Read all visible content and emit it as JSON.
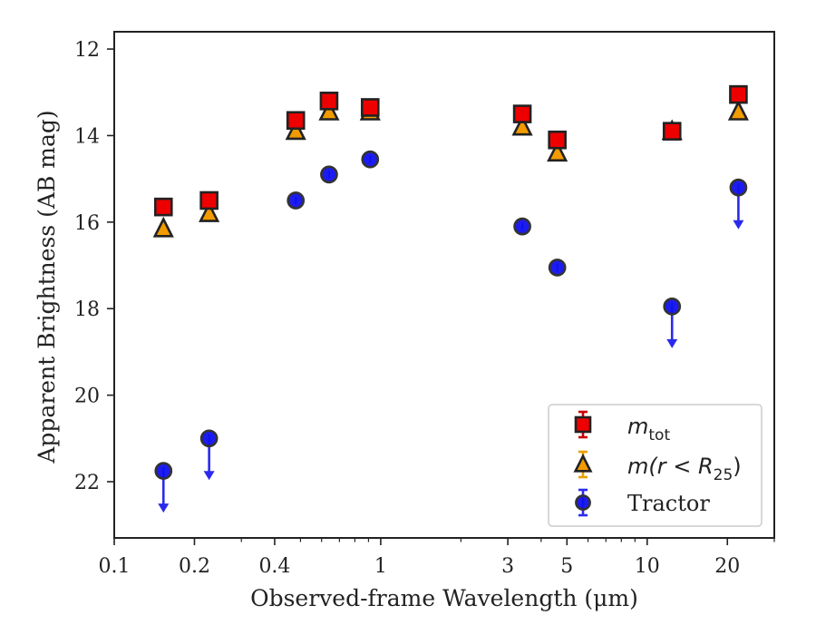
{
  "chart_data": {
    "type": "scatter",
    "xlabel": "Observed-frame Wavelength (μm)",
    "ylabel": "Apparent Brightness (AB mag)",
    "xscale": "log",
    "xlim": [
      0.1,
      30
    ],
    "ylim": [
      23.3,
      11.6
    ],
    "y_inverted": true,
    "xticks": [
      {
        "value": 0.1,
        "label": "0.1"
      },
      {
        "value": 0.2,
        "label": "0.2"
      },
      {
        "value": 0.4,
        "label": "0.4"
      },
      {
        "value": 1,
        "label": "1"
      },
      {
        "value": 3,
        "label": "3"
      },
      {
        "value": 5,
        "label": "5"
      },
      {
        "value": 10,
        "label": "10"
      },
      {
        "value": 20,
        "label": "20"
      }
    ],
    "yticks": [
      {
        "value": 12,
        "label": "12"
      },
      {
        "value": 14,
        "label": "14"
      },
      {
        "value": 16,
        "label": "16"
      },
      {
        "value": 18,
        "label": "18"
      },
      {
        "value": 20,
        "label": "20"
      },
      {
        "value": 22,
        "label": "22"
      }
    ],
    "legend_position": "lower right",
    "legend": [
      {
        "label": "m",
        "sub": "tot"
      },
      {
        "label": "m(r < R",
        "sub": "25",
        "suffix": ")"
      },
      {
        "label": "Tractor"
      }
    ],
    "series": [
      {
        "marker": "square",
        "color": "#ee0000",
        "edge": "#222222",
        "errcolor": "#cc0000",
        "points": [
          {
            "x": 0.153,
            "y": 15.65
          },
          {
            "x": 0.227,
            "y": 15.5
          },
          {
            "x": 0.48,
            "y": 13.65
          },
          {
            "x": 0.64,
            "y": 13.2
          },
          {
            "x": 0.913,
            "y": 13.35
          },
          {
            "x": 3.4,
            "y": 13.5
          },
          {
            "x": 4.6,
            "y": 14.1
          },
          {
            "x": 12.4,
            "y": 13.9
          },
          {
            "x": 22.0,
            "y": 13.05
          }
        ]
      },
      {
        "marker": "triangle",
        "color": "#f29b00",
        "edge": "#222222",
        "errcolor": "#e8a000",
        "points": [
          {
            "x": 0.153,
            "y": 16.15
          },
          {
            "x": 0.227,
            "y": 15.8
          },
          {
            "x": 0.48,
            "y": 13.9
          },
          {
            "x": 0.64,
            "y": 13.45
          },
          {
            "x": 0.913,
            "y": 13.45
          },
          {
            "x": 3.4,
            "y": 13.8
          },
          {
            "x": 4.6,
            "y": 14.4
          },
          {
            "x": 12.4,
            "y": 13.9
          },
          {
            "x": 22.0,
            "y": 13.45
          }
        ]
      },
      {
        "marker": "circle",
        "color": "#1010ee",
        "edge": "#333333",
        "errcolor": "#2a2aee",
        "points": [
          {
            "x": 0.153,
            "y": 21.75,
            "upper_limit": true
          },
          {
            "x": 0.227,
            "y": 21.0,
            "upper_limit": true
          },
          {
            "x": 0.48,
            "y": 15.5
          },
          {
            "x": 0.64,
            "y": 14.9
          },
          {
            "x": 0.913,
            "y": 14.55
          },
          {
            "x": 3.4,
            "y": 16.1
          },
          {
            "x": 4.6,
            "y": 17.05
          },
          {
            "x": 12.4,
            "y": 17.95,
            "upper_limit": true
          },
          {
            "x": 22.0,
            "y": 15.2,
            "upper_limit": true
          }
        ]
      }
    ]
  }
}
